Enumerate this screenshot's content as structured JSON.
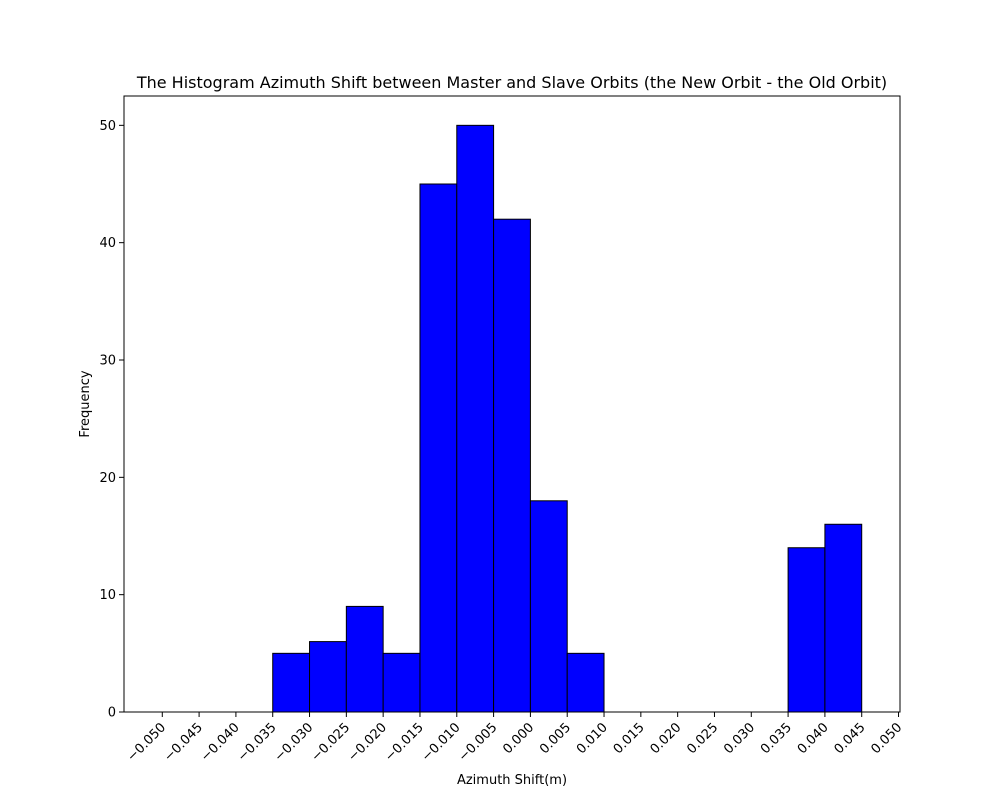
{
  "chart_data": {
    "type": "bar",
    "title": "The Histogram Azimuth Shift between Master and Slave Orbits (the New Orbit - the Old Orbit)",
    "xlabel": "Azimuth Shift(m)",
    "ylabel": "Frequency",
    "bin_edges": [
      -0.05,
      -0.045,
      -0.04,
      -0.035,
      -0.03,
      -0.025,
      -0.02,
      -0.015,
      -0.01,
      -0.005,
      0.0,
      0.005,
      0.01,
      0.015,
      0.02,
      0.025,
      0.03,
      0.035,
      0.04,
      0.045,
      0.05
    ],
    "values": [
      0,
      0,
      0,
      5,
      6,
      9,
      5,
      45,
      50,
      42,
      18,
      5,
      0,
      0,
      0,
      0,
      0,
      14,
      16,
      0
    ],
    "xlim": [
      -0.0552,
      0.0502
    ],
    "ylim": [
      0,
      52.5
    ],
    "xticks": [
      -0.05,
      -0.045,
      -0.04,
      -0.035,
      -0.03,
      -0.025,
      -0.02,
      -0.015,
      -0.01,
      -0.005,
      0.0,
      0.005,
      0.01,
      0.015,
      0.02,
      0.025,
      0.03,
      0.035,
      0.04,
      0.045,
      0.05
    ],
    "xtick_labels": [
      "−0.050",
      "−0.045",
      "−0.040",
      "−0.035",
      "−0.030",
      "−0.025",
      "−0.020",
      "−0.015",
      "−0.010",
      "−0.005",
      "0.000",
      "0.005",
      "0.010",
      "0.015",
      "0.020",
      "0.025",
      "0.030",
      "0.035",
      "0.040",
      "0.045",
      "0.050"
    ],
    "yticks": [
      0,
      10,
      20,
      30,
      40,
      50
    ],
    "ytick_labels": [
      "0",
      "10",
      "20",
      "30",
      "40",
      "50"
    ],
    "grid": false,
    "legend": "none",
    "colors": {
      "bar_fill": "#0000ff",
      "bar_edge": "#000000",
      "axes": "#000000",
      "background": "#ffffff"
    }
  }
}
